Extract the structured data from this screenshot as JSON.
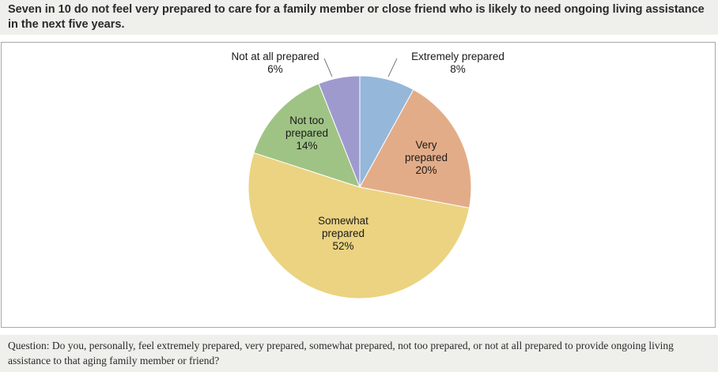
{
  "header": {
    "title": "Seven in 10 do not feel very prepared to care for a family member or close friend who is likely to need ongoing living assistance in the next five years."
  },
  "footer": {
    "question": "Question: Do you, personally, feel extremely prepared, very prepared, somewhat prepared, not too prepared, or not at all prepared to provide ongoing living assistance to that aging family member or friend?"
  },
  "chart_data": {
    "type": "pie",
    "start_angle_deg": 0,
    "direction": "clockwise",
    "legend": "none",
    "slices": [
      {
        "label": [
          "Extremely prepared"
        ],
        "value": 8,
        "value_label": "8%",
        "color": "#95b7da",
        "label_position": "outside"
      },
      {
        "label": [
          "Very",
          "prepared"
        ],
        "value": 20,
        "value_label": "20%",
        "color": "#e3ac88",
        "label_position": "inside"
      },
      {
        "label": [
          "Somewhat",
          "prepared"
        ],
        "value": 52,
        "value_label": "52%",
        "color": "#ebd381",
        "label_position": "inside"
      },
      {
        "label": [
          "Not too",
          "prepared"
        ],
        "value": 14,
        "value_label": "14%",
        "color": "#9fc385",
        "label_position": "inside"
      },
      {
        "label": [
          "Not at all prepared"
        ],
        "value": 6,
        "value_label": "6%",
        "color": "#9f9ace",
        "label_position": "outside"
      }
    ]
  }
}
